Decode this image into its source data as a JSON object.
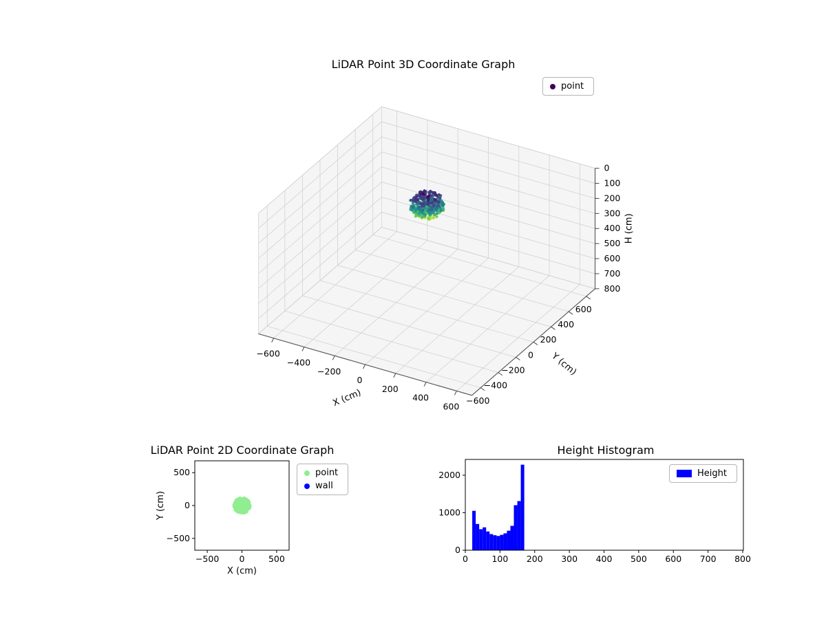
{
  "figure": {
    "background": "#ffffff"
  },
  "chart_data": [
    {
      "id": "plot3d",
      "type": "scatter",
      "projection": "3d",
      "title": "LiDAR Point 3D Coordinate Graph",
      "xlabel": "X (cm)",
      "ylabel": "Y (cm)",
      "zlabel": "H (cm)",
      "xlim": [
        -700,
        700
      ],
      "ylim": [
        -700,
        700
      ],
      "zlim": [
        0,
        800
      ],
      "z_axis_inverted": true,
      "xticks": [
        -600,
        -400,
        -200,
        0,
        200,
        400,
        600
      ],
      "yticks": [
        600,
        400,
        200,
        0,
        -200,
        -400,
        -600
      ],
      "zticks": [
        0,
        100,
        200,
        300,
        400,
        500,
        600,
        700,
        800
      ],
      "grid": true,
      "legend": [
        {
          "label": "point",
          "color": "#440154"
        }
      ],
      "series": [
        {
          "name": "point",
          "kind": "cluster",
          "center": [
            0,
            0,
            95
          ],
          "radius": [
            105,
            105,
            75
          ],
          "h_range": [
            20,
            170
          ],
          "point_count": 380,
          "colormap": "viridis",
          "color_by": "height H (low=dark purple, high=green)"
        }
      ]
    },
    {
      "id": "plot2d",
      "type": "scatter",
      "projection": "2d",
      "title": "LiDAR Point 2D Coordinate Graph",
      "xlabel": "X (cm)",
      "ylabel": "Y (cm)",
      "xlim": [
        -680,
        680
      ],
      "ylim": [
        -680,
        680
      ],
      "xticks": [
        -500,
        0,
        500
      ],
      "yticks": [
        500,
        0,
        -500
      ],
      "legend": [
        {
          "label": "point",
          "color": "#90ee90"
        },
        {
          "label": "wall",
          "color": "#0000ff"
        }
      ],
      "series": [
        {
          "name": "point",
          "kind": "cluster",
          "center": [
            0,
            0
          ],
          "radius": [
            115,
            115
          ],
          "point_count": 300,
          "color": "#90ee90"
        },
        {
          "name": "wall",
          "kind": "cluster",
          "center": [
            0,
            0
          ],
          "radius": [
            0,
            0
          ],
          "point_count": 0,
          "color": "#0000ff"
        }
      ]
    },
    {
      "id": "height_histogram",
      "type": "bar",
      "title": "Height Histogram",
      "xlim": [
        0,
        802
      ],
      "ylim": [
        0,
        2420
      ],
      "xticks": [
        0,
        100,
        200,
        300,
        400,
        500,
        600,
        700,
        800
      ],
      "yticks": [
        0,
        1000,
        2000
      ],
      "bin_start": 20,
      "bin_width": 10,
      "values": [
        1050,
        700,
        560,
        610,
        500,
        430,
        400,
        380,
        410,
        450,
        520,
        650,
        1200,
        1310,
        2280
      ],
      "bar_color": "#0000ff",
      "legend": [
        {
          "label": "Height",
          "color": "#0000ff"
        }
      ]
    }
  ]
}
